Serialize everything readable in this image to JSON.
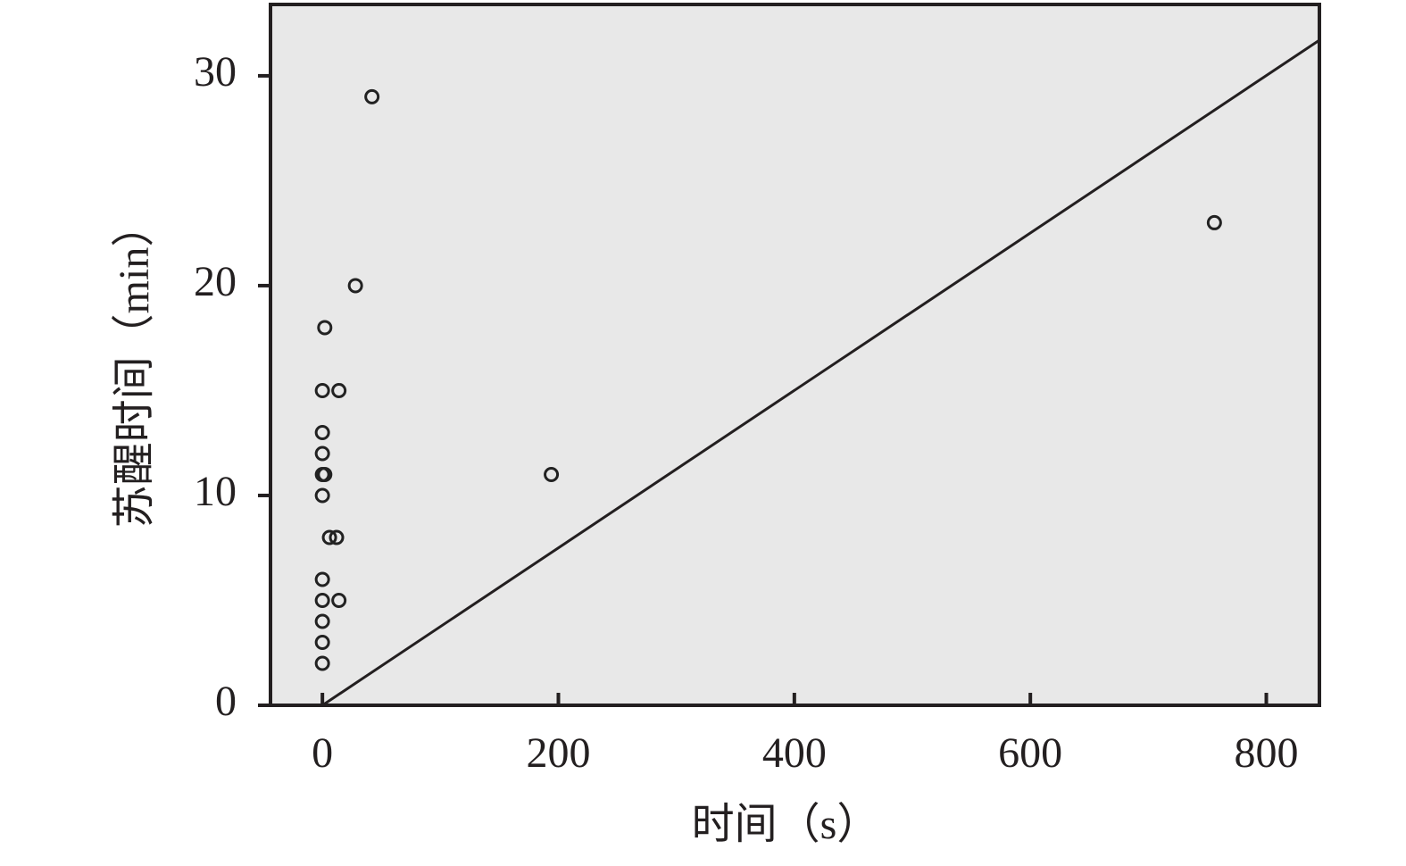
{
  "chart_data": {
    "type": "scatter",
    "x_label": "时间（s）",
    "y_label": "苏醒时间（min）",
    "x": [
      42,
      756,
      28,
      2,
      0,
      14,
      0,
      0,
      0,
      2,
      194,
      0,
      6,
      12,
      0,
      0,
      14,
      0,
      0,
      0
    ],
    "y": [
      29,
      23,
      20,
      18,
      15,
      15,
      13,
      12,
      11,
      11,
      11,
      10,
      8,
      8,
      6,
      5,
      5,
      4,
      3,
      2
    ],
    "color": "#222222",
    "line": {
      "x": [
        0,
        845
      ],
      "y": [
        0,
        31.7
      ]
    },
    "xlim": [
      -44,
      845
    ],
    "ylim": [
      0,
      33.4
    ],
    "xticks": [
      0,
      200,
      400,
      600,
      800
    ],
    "yticks": [
      0,
      10,
      20,
      30
    ]
  }
}
